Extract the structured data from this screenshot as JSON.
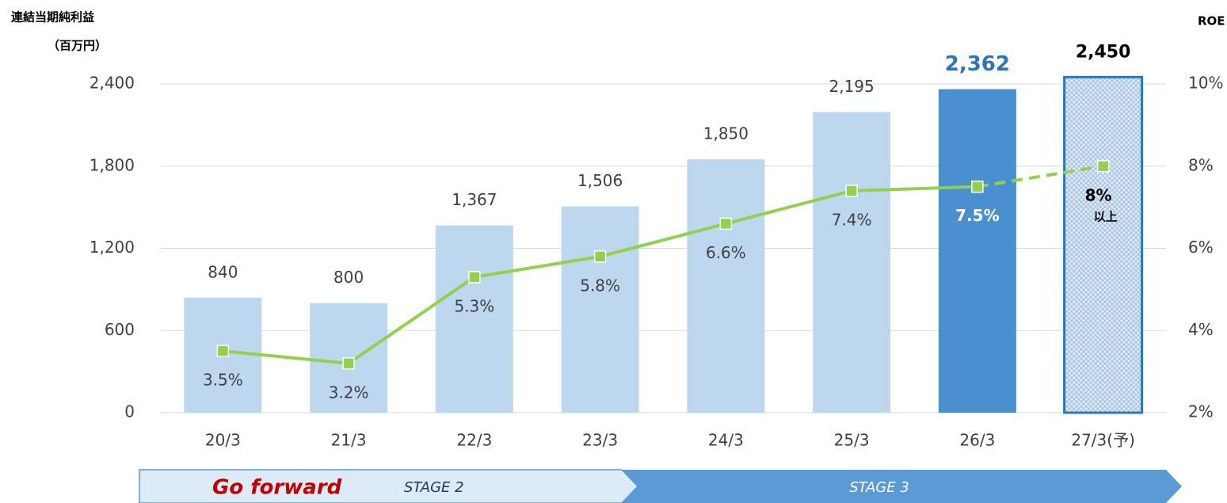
{
  "chart_data": {
    "type": "bar_line",
    "title": "連結当期純利益",
    "ylabel": "（百万円）",
    "y2label": "ROE",
    "categories": [
      "20/3",
      "21/3",
      "22/3",
      "23/3",
      "24/3",
      "25/3",
      "26/3",
      "27/3(予)"
    ],
    "ylim": [
      0,
      2400
    ],
    "yticks": [
      0,
      600,
      {
        "value": 1200,
        "label": "1,200"
      },
      {
        "value": 1800,
        "label": "1,800"
      },
      {
        "value": 2400,
        "label": "2,400"
      }
    ],
    "y2lim": [
      2,
      10
    ],
    "y2ticks": [
      {
        "value": 2,
        "label": "2%"
      },
      {
        "value": 4,
        "label": "4%"
      },
      {
        "value": 6,
        "label": "6%"
      },
      {
        "value": 8,
        "label": "8%"
      },
      {
        "value": 10,
        "label": "10%"
      }
    ],
    "grid": true,
    "series": [
      {
        "type": "bar",
        "colors": [
          "#bdd7ee",
          "#bdd7ee",
          "#bdd7ee",
          "#bdd7ee",
          "#bdd7ee",
          "#bdd7ee",
          "#4a8fd0",
          "#c9dcef"
        ],
        "hatched": [
          false,
          false,
          false,
          false,
          false,
          false,
          false,
          true
        ],
        "values": [
          840,
          800,
          1367,
          1506,
          1850,
          2195,
          2362,
          2450
        ],
        "value_labels": [
          "840",
          "800",
          "1,367",
          "1,506",
          "1,850",
          "2,195",
          "2,362",
          "2,450"
        ]
      },
      {
        "type": "line",
        "axis": "y2",
        "color": "#92d050",
        "dash_last": true,
        "values": [
          3.5,
          3.2,
          5.3,
          5.8,
          6.6,
          7.4,
          7.5,
          8
        ],
        "value_labels": [
          "3.5%",
          "3.2%",
          "5.3%",
          "5.8%",
          "6.6%",
          "7.4%",
          "7.5%",
          "8%"
        ]
      }
    ],
    "annotations": [
      "以上"
    ],
    "stages": [
      "Go forward",
      "STAGE 2",
      "STAGE 3"
    ]
  }
}
